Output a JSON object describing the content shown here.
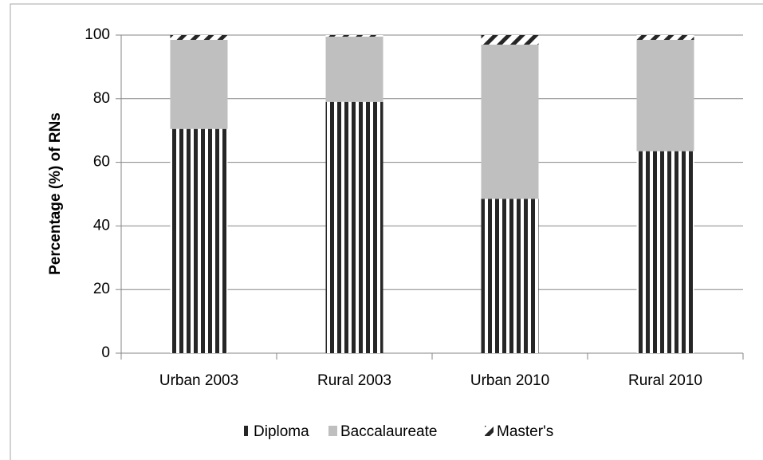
{
  "chart_data": {
    "type": "stacked_bar",
    "ylabel": "Percentage (%) of RNs",
    "categories": [
      "Urban 2003",
      "Rural 2003",
      "Urban 2010",
      "Rural 2010"
    ],
    "series": [
      {
        "name": "Diploma",
        "color": "#262626",
        "pattern": "vertical-stripes",
        "values": [
          70.5,
          79,
          48.5,
          63.5
        ]
      },
      {
        "name": "Baccalaureate",
        "color": "#bfbfbf",
        "pattern": "solid",
        "values": [
          28,
          20.5,
          48.5,
          35
        ]
      },
      {
        "name": "Master's",
        "color": "#262626",
        "pattern": "diagonal-hatch",
        "values": [
          1.5,
          0.5,
          3,
          1.5
        ]
      }
    ],
    "ylim": [
      0,
      100
    ],
    "yticks": [
      0,
      20,
      40,
      60,
      80,
      100
    ],
    "grid": true,
    "legend": "bottom"
  }
}
